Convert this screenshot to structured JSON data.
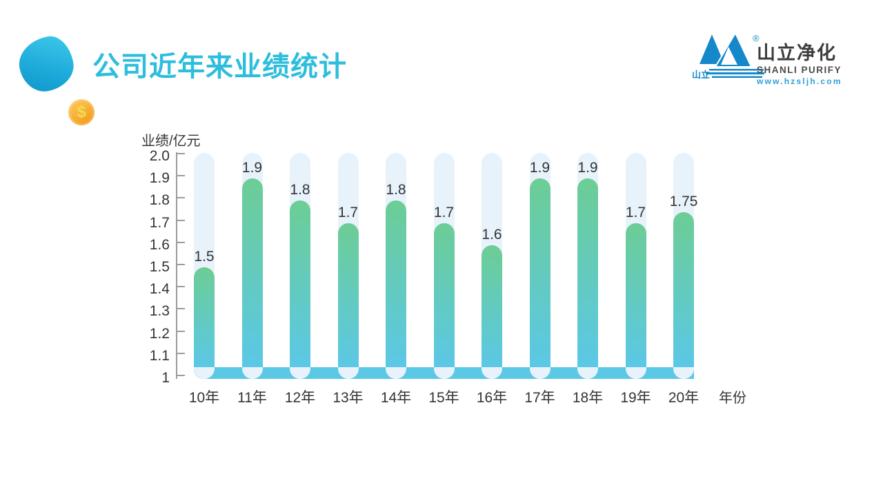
{
  "header": {
    "title": "公司近年来业绩统计",
    "coin_symbol": "$"
  },
  "logo": {
    "brand_zh_small": "山立",
    "registered_mark": "®",
    "brand_zh": "山立净化",
    "brand_en": "SHANLI PURIFY",
    "website": "www.hzsljh.com",
    "brand_color": "#1488CB"
  },
  "chart_data": {
    "type": "bar",
    "title": "公司近年来业绩统计",
    "ylabel": "业绩/亿元",
    "xlabel": "年份",
    "categories": [
      "10年",
      "11年",
      "12年",
      "13年",
      "14年",
      "15年",
      "16年",
      "17年",
      "18年",
      "19年",
      "20年"
    ],
    "values": [
      1.5,
      1.9,
      1.8,
      1.7,
      1.8,
      1.7,
      1.6,
      1.9,
      1.9,
      1.7,
      1.75
    ],
    "value_labels": [
      "1.5",
      "1.9",
      "1.8",
      "1.7",
      "1.8",
      "1.7",
      "1.6",
      "1.9",
      "1.9",
      "1.7",
      "1.75"
    ],
    "y_ticks": [
      "2.0",
      "1.9",
      "1.8",
      "1.7",
      "1.6",
      "1.5",
      "1.4",
      "1.3",
      "1.2",
      "1.1",
      "1"
    ],
    "ylim": [
      1,
      2.0
    ],
    "track_max": 2.0,
    "grid": false,
    "legend": "none",
    "colors": {
      "bar_top": "#6CCD95",
      "bar_bottom": "#5BC8E6",
      "track": "#E8F2FB",
      "base_band": "#5BC8E6",
      "axis": "#9B9B9B",
      "text": "#333333",
      "title": "#2DBDDD"
    }
  }
}
